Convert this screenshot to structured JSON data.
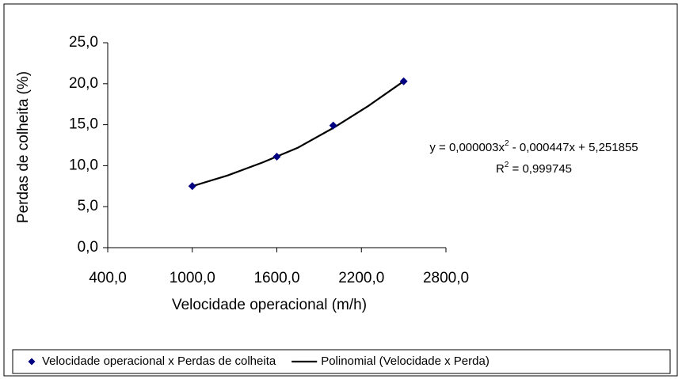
{
  "chart_data": {
    "type": "scatter",
    "xlabel": "Velocidade operacional (m/h)",
    "ylabel": "Perdas de colheita (%)",
    "xlim": [
      400,
      2800
    ],
    "xticks": [
      {
        "value": 400,
        "label": "400,0"
      },
      {
        "value": 1000,
        "label": "1000,0"
      },
      {
        "value": 1600,
        "label": "1600,0"
      },
      {
        "value": 2200,
        "label": "2200,0"
      },
      {
        "value": 2800,
        "label": "2800,0"
      }
    ],
    "ylim": [
      0,
      25
    ],
    "yticks": [
      {
        "value": 0,
        "label": "0,0"
      },
      {
        "value": 5,
        "label": "5,0"
      },
      {
        "value": 10,
        "label": "10,0"
      },
      {
        "value": 15,
        "label": "15,0"
      },
      {
        "value": 20,
        "label": "20,0"
      },
      {
        "value": 25,
        "label": "25,0"
      }
    ],
    "series": [
      {
        "name": "Velocidade operacional x Perdas de colheita",
        "kind": "marker",
        "color": "#000080",
        "x": [
          1000,
          1600,
          2000,
          2500
        ],
        "values": [
          7.5,
          11.1,
          14.9,
          20.3
        ]
      },
      {
        "name": "Polinomial (Velocidade x Perda)",
        "kind": "line",
        "color": "#000000",
        "x": [
          1000,
          1250,
          1500,
          1750,
          2000,
          2250,
          2500
        ],
        "values": [
          7.5,
          8.8,
          10.4,
          12.2,
          14.6,
          17.3,
          20.3
        ]
      }
    ],
    "equation": [
      "y = 0,000003x",
      "2",
      " - 0,000447x + 5,251855"
    ],
    "r_squared": [
      "R",
      "2",
      " = 0,999745"
    ]
  }
}
